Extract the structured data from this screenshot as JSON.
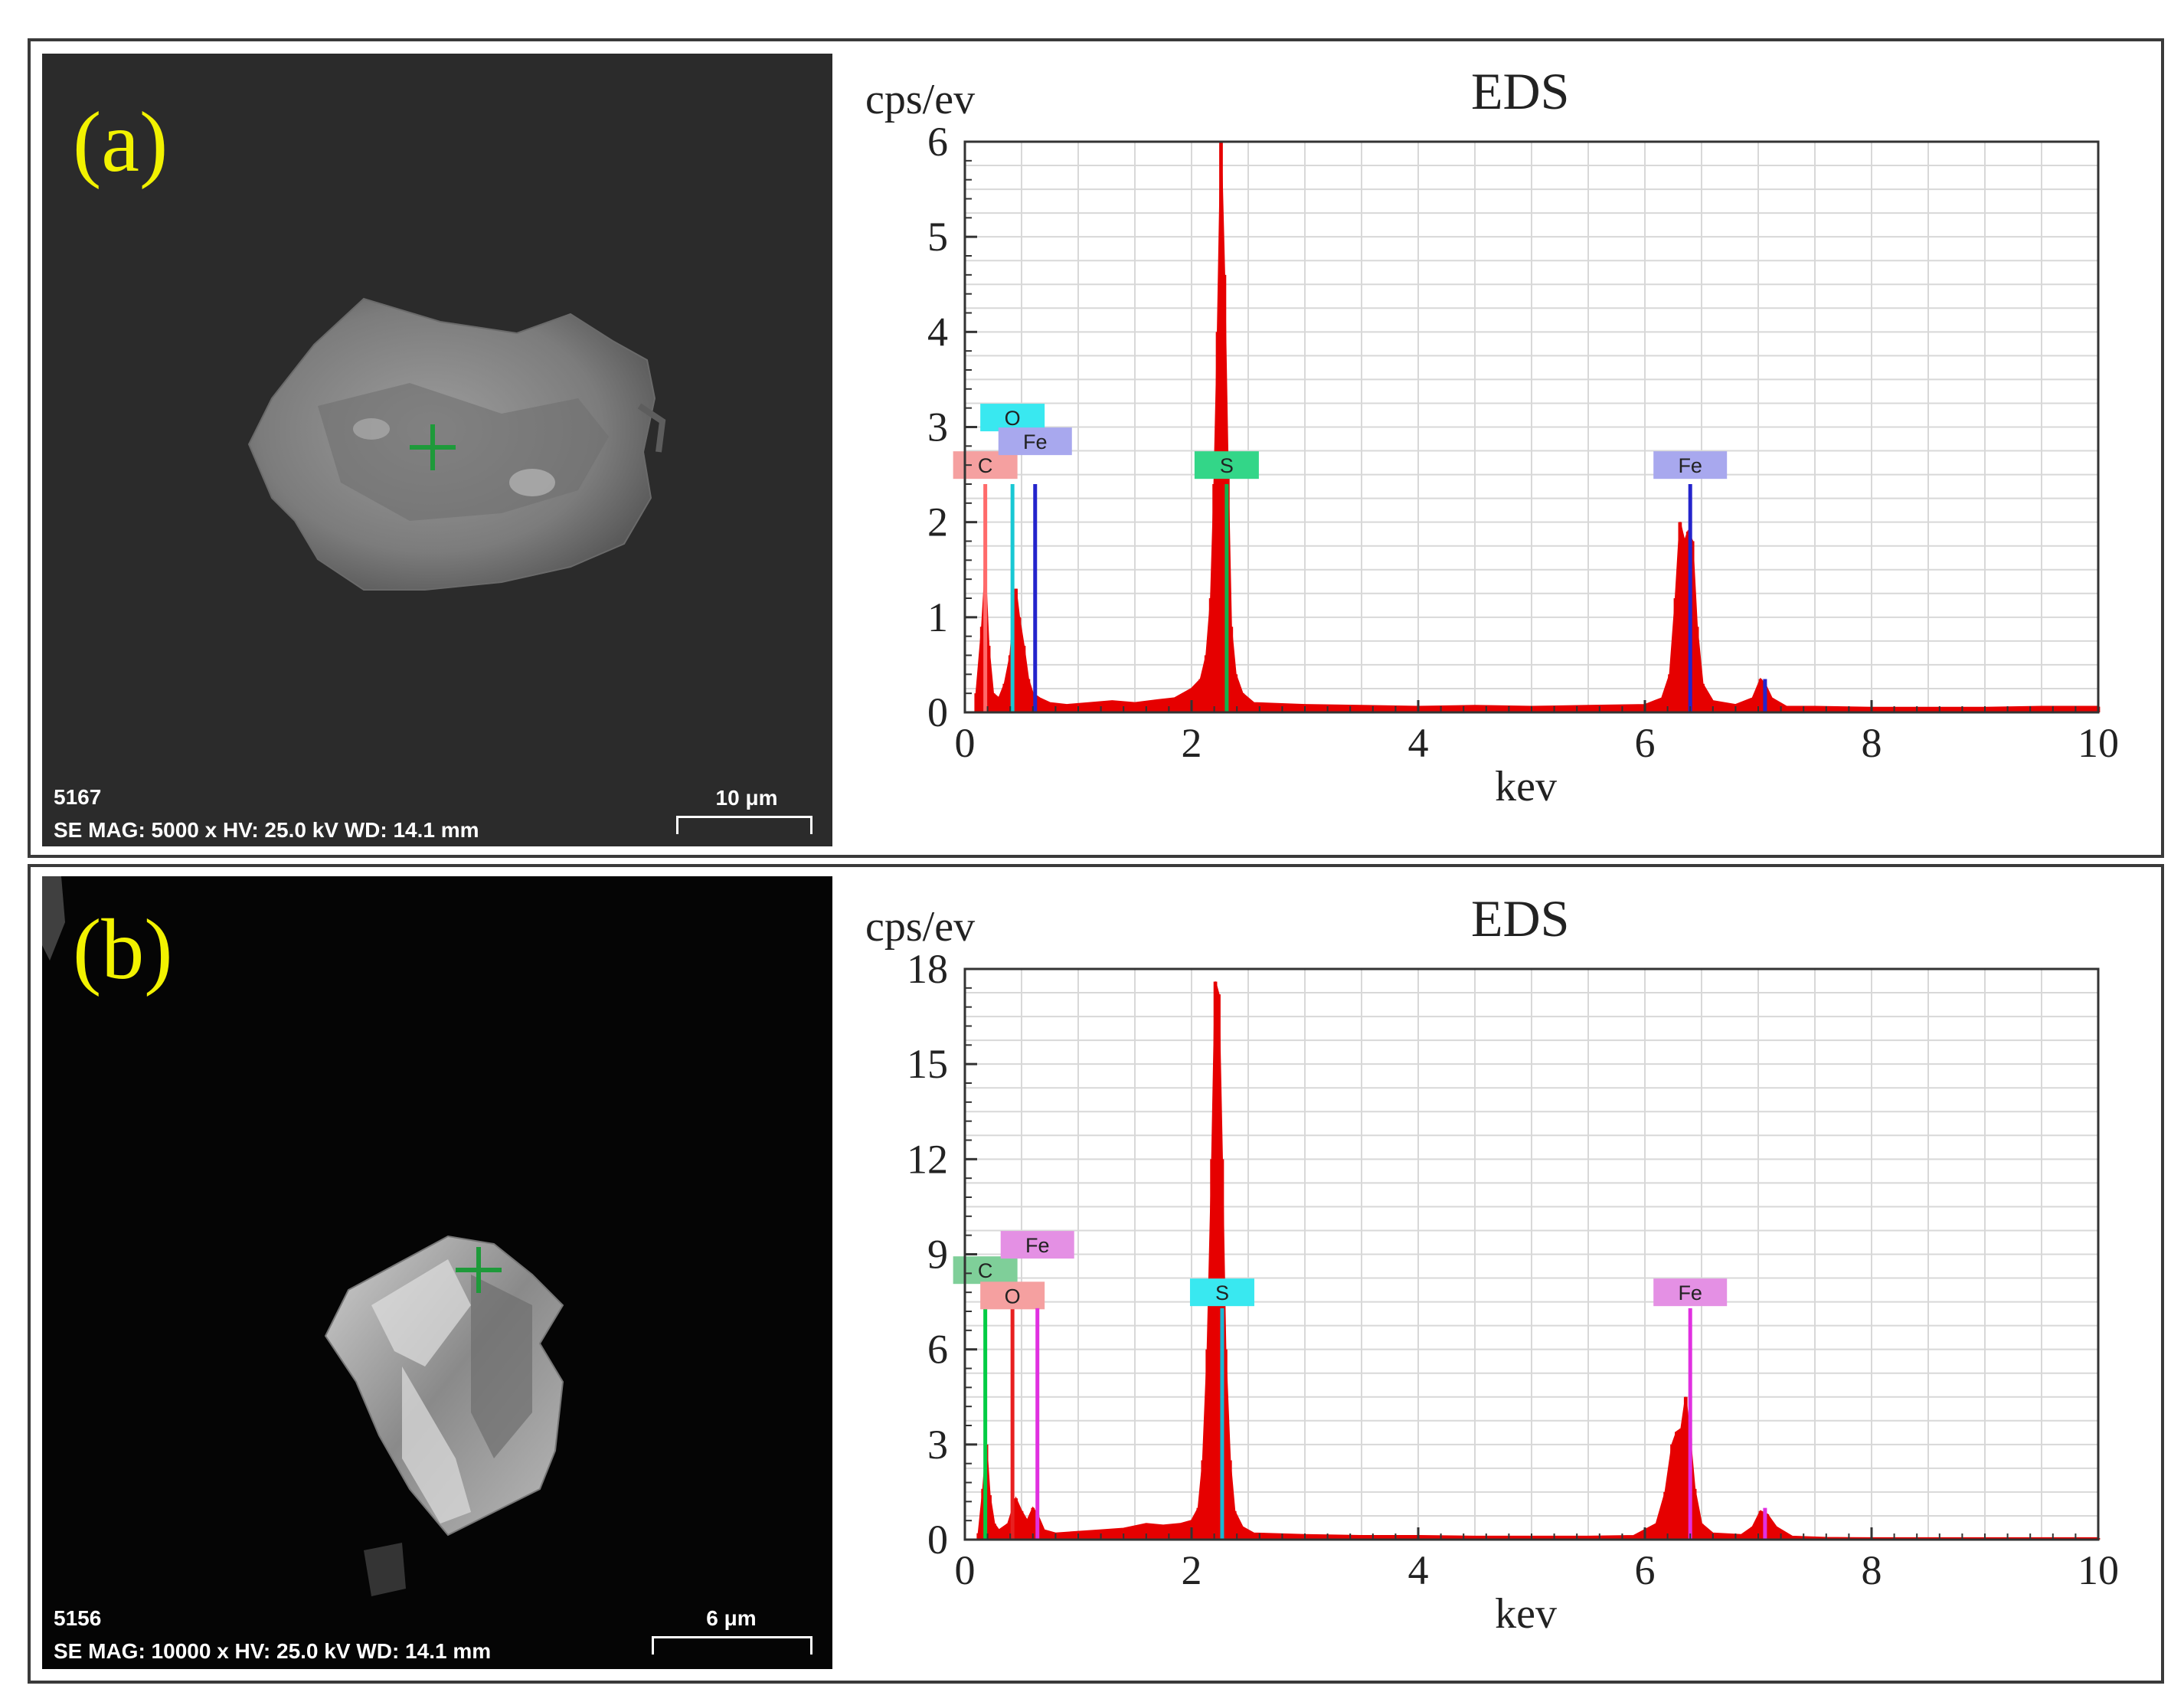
{
  "panels": [
    {
      "label": "(a)",
      "sem": {
        "image_id": "5167",
        "info": "SE  MAG: 5000 x HV: 25.0 kV  WD: 14.1 mm",
        "scale": "10 μm",
        "background": "#2b2b2b",
        "particle_color": "#8a8a8a",
        "marker_color": "#1e9a3a"
      },
      "chart_data": {
        "type": "bar",
        "title": "EDS",
        "ylabel": "cps/ev",
        "xlabel": "kev",
        "xlim": [
          0,
          10
        ],
        "ylim": [
          0,
          6
        ],
        "xticks": [
          0,
          2,
          4,
          6,
          8,
          10
        ],
        "yticks": [
          0,
          1,
          2,
          3,
          4,
          5,
          6
        ],
        "grid": true,
        "spectrum_color": "#e60000",
        "spectrum": [
          [
            0.1,
            0.2
          ],
          [
            0.15,
            0.9
          ],
          [
            0.18,
            1.5
          ],
          [
            0.21,
            0.7
          ],
          [
            0.25,
            0.2
          ],
          [
            0.3,
            0.15
          ],
          [
            0.35,
            0.3
          ],
          [
            0.4,
            0.6
          ],
          [
            0.45,
            1.3
          ],
          [
            0.48,
            1.0
          ],
          [
            0.52,
            0.7
          ],
          [
            0.56,
            0.35
          ],
          [
            0.6,
            0.2
          ],
          [
            0.66,
            0.15
          ],
          [
            0.75,
            0.1
          ],
          [
            0.9,
            0.08
          ],
          [
            1.1,
            0.1
          ],
          [
            1.3,
            0.12
          ],
          [
            1.5,
            0.1
          ],
          [
            1.7,
            0.13
          ],
          [
            1.85,
            0.15
          ],
          [
            2.0,
            0.25
          ],
          [
            2.08,
            0.35
          ],
          [
            2.13,
            0.6
          ],
          [
            2.17,
            1.2
          ],
          [
            2.2,
            2.4
          ],
          [
            2.23,
            4.0
          ],
          [
            2.26,
            6.0
          ],
          [
            2.29,
            4.6
          ],
          [
            2.32,
            2.6
          ],
          [
            2.35,
            0.9
          ],
          [
            2.39,
            0.4
          ],
          [
            2.45,
            0.2
          ],
          [
            2.55,
            0.1
          ],
          [
            3.0,
            0.08
          ],
          [
            3.5,
            0.07
          ],
          [
            4.0,
            0.06
          ],
          [
            4.5,
            0.07
          ],
          [
            5.0,
            0.06
          ],
          [
            5.5,
            0.07
          ],
          [
            6.0,
            0.08
          ],
          [
            6.15,
            0.15
          ],
          [
            6.22,
            0.4
          ],
          [
            6.27,
            1.2
          ],
          [
            6.31,
            2.0
          ],
          [
            6.35,
            1.8
          ],
          [
            6.38,
            1.9
          ],
          [
            6.42,
            1.8
          ],
          [
            6.46,
            0.9
          ],
          [
            6.51,
            0.3
          ],
          [
            6.6,
            0.12
          ],
          [
            6.8,
            0.08
          ],
          [
            6.95,
            0.15
          ],
          [
            7.02,
            0.35
          ],
          [
            7.06,
            0.3
          ],
          [
            7.12,
            0.15
          ],
          [
            7.25,
            0.06
          ],
          [
            7.5,
            0.06
          ],
          [
            8.0,
            0.05
          ],
          [
            8.5,
            0.05
          ],
          [
            9.0,
            0.05
          ],
          [
            9.5,
            0.06
          ],
          [
            10.0,
            0.06
          ]
        ],
        "element_lines": [
          {
            "element": "C",
            "x": 0.18,
            "height": 2.4,
            "color": "#ff6a6a",
            "tag_color": "#f5a0a0",
            "tag_y": 2.6,
            "tag_dx": 0.0
          },
          {
            "element": "O",
            "x": 0.42,
            "height": 2.4,
            "color": "#19c8d4",
            "tag_color": "#39e8f0",
            "tag_y": 3.1,
            "tag_dx": 0.0
          },
          {
            "element": "Fe",
            "x": 0.62,
            "height": 2.4,
            "color": "#2424cc",
            "tag_color": "#a8a8ee",
            "tag_y": 2.85,
            "tag_dx": 0.0
          },
          {
            "element": "S",
            "x": 2.31,
            "height": 2.4,
            "color": "#12b24a",
            "tag_color": "#33d688",
            "tag_y": 2.6,
            "tag_dx": 0.0
          },
          {
            "element": "Fe",
            "x": 6.4,
            "height": 2.4,
            "color": "#2424cc",
            "tag_color": "#a8a8ee",
            "tag_y": 2.6,
            "tag_dx": 0.0
          },
          {
            "element": "Fe",
            "x": 7.06,
            "height": 0.35,
            "color": "#2424cc",
            "tag_color": "",
            "tag_y": null,
            "tag_dx": 0.0
          }
        ]
      }
    },
    {
      "label": "(b)",
      "sem": {
        "image_id": "5156",
        "info": "SE  MAG: 10000 x HV: 25.0 kV  WD: 14.1 mm",
        "scale": "6 μm",
        "background": "#050505",
        "particle_color": "#9a9a9a",
        "marker_color": "#1e9a3a"
      },
      "chart_data": {
        "type": "bar",
        "title": "EDS",
        "ylabel": "cps/ev",
        "xlabel": "kev",
        "xlim": [
          0,
          10
        ],
        "ylim": [
          0,
          18
        ],
        "xticks": [
          0,
          2,
          4,
          6,
          8,
          10
        ],
        "yticks": [
          0,
          3,
          6,
          9,
          12,
          15,
          18
        ],
        "grid": true,
        "spectrum_color": "#e60000",
        "spectrum": [
          [
            0.12,
            0.2
          ],
          [
            0.16,
            1.6
          ],
          [
            0.19,
            3.0
          ],
          [
            0.22,
            1.4
          ],
          [
            0.26,
            0.5
          ],
          [
            0.3,
            0.3
          ],
          [
            0.38,
            0.5
          ],
          [
            0.45,
            1.3
          ],
          [
            0.5,
            0.9
          ],
          [
            0.55,
            0.6
          ],
          [
            0.6,
            1.0
          ],
          [
            0.64,
            0.8
          ],
          [
            0.7,
            0.3
          ],
          [
            0.8,
            0.2
          ],
          [
            1.0,
            0.25
          ],
          [
            1.2,
            0.3
          ],
          [
            1.4,
            0.35
          ],
          [
            1.6,
            0.5
          ],
          [
            1.75,
            0.45
          ],
          [
            1.9,
            0.5
          ],
          [
            2.0,
            0.6
          ],
          [
            2.06,
            1.0
          ],
          [
            2.1,
            2.5
          ],
          [
            2.14,
            6.0
          ],
          [
            2.18,
            12.0
          ],
          [
            2.21,
            17.6
          ],
          [
            2.24,
            17.2
          ],
          [
            2.27,
            12.0
          ],
          [
            2.3,
            6.0
          ],
          [
            2.34,
            2.5
          ],
          [
            2.38,
            0.9
          ],
          [
            2.45,
            0.4
          ],
          [
            2.55,
            0.2
          ],
          [
            3.0,
            0.15
          ],
          [
            3.5,
            0.12
          ],
          [
            4.0,
            0.12
          ],
          [
            4.5,
            0.1
          ],
          [
            5.0,
            0.1
          ],
          [
            5.5,
            0.1
          ],
          [
            5.9,
            0.12
          ],
          [
            6.1,
            0.5
          ],
          [
            6.18,
            1.5
          ],
          [
            6.24,
            3.0
          ],
          [
            6.28,
            3.4
          ],
          [
            6.32,
            3.5
          ],
          [
            6.36,
            4.5
          ],
          [
            6.4,
            3.2
          ],
          [
            6.44,
            1.6
          ],
          [
            6.5,
            0.5
          ],
          [
            6.6,
            0.2
          ],
          [
            6.85,
            0.15
          ],
          [
            6.95,
            0.4
          ],
          [
            7.02,
            0.9
          ],
          [
            7.08,
            0.8
          ],
          [
            7.16,
            0.4
          ],
          [
            7.3,
            0.1
          ],
          [
            7.6,
            0.06
          ],
          [
            8.0,
            0.05
          ],
          [
            8.5,
            0.05
          ],
          [
            9.0,
            0.05
          ],
          [
            9.5,
            0.05
          ],
          [
            10.0,
            0.05
          ]
        ],
        "element_lines": [
          {
            "element": "C",
            "x": 0.18,
            "height": 7.3,
            "color": "#00cc44",
            "tag_color": "#7fcf99",
            "tag_y": 8.5,
            "tag_dx": 0.0
          },
          {
            "element": "O",
            "x": 0.42,
            "height": 7.3,
            "color": "#e82020",
            "tag_color": "#f5a0a0",
            "tag_y": 7.7,
            "tag_dx": 0.0
          },
          {
            "element": "Fe",
            "x": 0.64,
            "height": 7.3,
            "color": "#e030e0",
            "tag_color": "#e490e4",
            "tag_y": 9.3,
            "tag_dx": 0.0
          },
          {
            "element": "S",
            "x": 2.27,
            "height": 7.3,
            "color": "#19b8d4",
            "tag_color": "#39e8f0",
            "tag_y": 7.8,
            "tag_dx": 0.0
          },
          {
            "element": "Fe",
            "x": 6.4,
            "height": 7.3,
            "color": "#e030e0",
            "tag_color": "#e490e4",
            "tag_y": 7.8,
            "tag_dx": 0.0
          },
          {
            "element": "Fe",
            "x": 7.06,
            "height": 1.0,
            "color": "#e030e0",
            "tag_color": "",
            "tag_y": null,
            "tag_dx": 0.0
          }
        ]
      }
    }
  ]
}
